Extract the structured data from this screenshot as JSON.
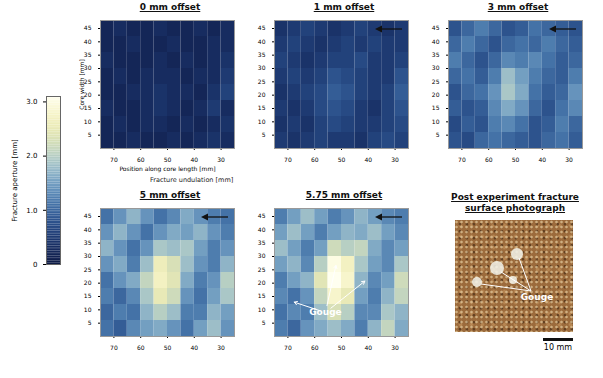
{
  "chart_data": {
    "type": "heatmap",
    "x_label": "Position along core length [mm]",
    "y_label": "Core width [mm]",
    "z_label": "Fracture undulation [mm]",
    "xlim": [
      75,
      25
    ],
    "xticks": [
      70,
      60,
      50,
      40,
      30
    ],
    "ylim": [
      0,
      48
    ],
    "yticks": [
      5,
      10,
      15,
      20,
      25,
      30,
      35,
      40,
      45
    ],
    "x_edges": [
      75,
      70,
      65,
      60,
      55,
      50,
      45,
      40,
      35,
      30,
      25
    ],
    "y_edges": [
      0,
      6,
      12,
      18,
      24,
      30,
      36,
      42,
      48
    ],
    "colorbar": {
      "label": "Fracture aperture [mm]",
      "range": [
        0,
        3.1
      ],
      "ticks": [
        0,
        {
          "value": 1,
          "label": "1.0"
        },
        {
          "value": 2,
          "label": "2.0"
        },
        {
          "value": 3,
          "label": "3.0"
        }
      ]
    },
    "panels": [
      {
        "title": "0 mm offset",
        "cells": [
          [
            0.2,
            0.2,
            0.3,
            0.2,
            0.2,
            0.3,
            0.2,
            0.3,
            0.4,
            0.3
          ],
          [
            0.2,
            0.3,
            0.2,
            0.3,
            0.3,
            0.2,
            0.3,
            0.2,
            0.3,
            0.4
          ],
          [
            0.3,
            0.2,
            0.2,
            0.3,
            0.4,
            0.3,
            0.2,
            0.3,
            0.5,
            0.3
          ],
          [
            0.2,
            0.2,
            0.3,
            0.3,
            0.4,
            0.3,
            0.3,
            0.2,
            0.4,
            0.6
          ],
          [
            0.2,
            0.3,
            0.2,
            0.3,
            0.3,
            0.3,
            0.2,
            0.3,
            0.3,
            0.5
          ],
          [
            0.3,
            0.2,
            0.2,
            0.2,
            0.3,
            0.2,
            0.3,
            0.2,
            0.3,
            0.4
          ],
          [
            0.2,
            0.2,
            0.3,
            0.2,
            0.2,
            0.3,
            0.2,
            0.2,
            0.3,
            0.3
          ],
          [
            0.2,
            0.3,
            0.2,
            0.2,
            0.3,
            0.2,
            0.2,
            0.3,
            0.2,
            0.3
          ]
        ]
      },
      {
        "title": "1 mm offset",
        "cells": [
          [
            0.5,
            0.4,
            0.5,
            0.6,
            0.5,
            0.5,
            0.4,
            0.6,
            0.7,
            0.6
          ],
          [
            0.4,
            0.5,
            0.4,
            0.6,
            0.7,
            0.6,
            0.5,
            0.5,
            0.6,
            0.7
          ],
          [
            0.5,
            0.4,
            0.5,
            0.7,
            0.8,
            0.7,
            0.5,
            0.4,
            0.6,
            0.8
          ],
          [
            0.4,
            0.5,
            0.6,
            0.7,
            0.9,
            0.8,
            0.6,
            0.5,
            0.6,
            0.9
          ],
          [
            0.5,
            0.6,
            0.5,
            0.6,
            0.8,
            0.7,
            0.6,
            0.5,
            0.5,
            0.8
          ],
          [
            0.6,
            0.5,
            0.4,
            0.5,
            0.6,
            0.6,
            0.7,
            0.5,
            0.5,
            0.6
          ],
          [
            0.5,
            0.6,
            0.5,
            0.4,
            0.5,
            0.6,
            0.5,
            0.6,
            0.5,
            0.5
          ],
          [
            0.4,
            0.5,
            0.6,
            0.5,
            0.4,
            0.5,
            0.6,
            0.5,
            0.4,
            0.5
          ]
        ]
      },
      {
        "title": "3 mm offset",
        "cells": [
          [
            0.8,
            0.7,
            1.0,
            1.1,
            1.0,
            0.9,
            0.8,
            1.0,
            1.1,
            0.9
          ],
          [
            0.7,
            0.9,
            0.8,
            1.2,
            1.3,
            1.1,
            0.8,
            0.9,
            1.2,
            1.0
          ],
          [
            0.9,
            0.8,
            0.9,
            1.3,
            1.6,
            1.4,
            1.0,
            0.8,
            1.1,
            1.3
          ],
          [
            0.8,
            1.0,
            1.1,
            1.4,
            1.9,
            1.6,
            1.1,
            0.9,
            1.0,
            1.4
          ],
          [
            1.0,
            1.1,
            0.9,
            1.2,
            1.8,
            1.5,
            1.2,
            1.0,
            0.9,
            1.2
          ],
          [
            1.2,
            1.0,
            0.8,
            1.0,
            1.3,
            1.2,
            1.3,
            1.1,
            0.9,
            1.0
          ],
          [
            1.0,
            1.2,
            1.0,
            0.8,
            1.0,
            1.1,
            1.0,
            1.2,
            1.0,
            0.9
          ],
          [
            0.8,
            1.0,
            1.2,
            1.0,
            0.8,
            0.9,
            1.1,
            1.0,
            0.9,
            0.8
          ]
        ]
      },
      {
        "title": "5 mm offset",
        "cells": [
          [
            1.1,
            0.9,
            1.3,
            1.5,
            1.6,
            1.4,
            1.1,
            1.5,
            1.8,
            1.4
          ],
          [
            1.0,
            1.2,
            1.1,
            1.7,
            2.0,
            1.8,
            1.2,
            1.2,
            1.7,
            1.5
          ],
          [
            1.2,
            1.0,
            1.3,
            1.9,
            2.5,
            2.2,
            1.4,
            1.1,
            1.5,
            1.9
          ],
          [
            1.1,
            1.4,
            1.6,
            2.1,
            2.7,
            2.4,
            1.6,
            1.2,
            1.4,
            2.0
          ],
          [
            1.4,
            1.6,
            1.2,
            1.8,
            2.6,
            2.3,
            1.8,
            1.4,
            1.2,
            1.7
          ],
          [
            1.7,
            1.4,
            1.1,
            1.4,
            1.9,
            1.8,
            1.9,
            1.5,
            1.2,
            1.4
          ],
          [
            1.4,
            1.7,
            1.4,
            1.1,
            1.4,
            1.6,
            1.5,
            1.7,
            1.4,
            1.2
          ],
          [
            1.1,
            1.4,
            1.7,
            1.4,
            1.1,
            1.3,
            1.6,
            1.4,
            1.2,
            1.1
          ]
        ]
      },
      {
        "title": "5.75 mm offset",
        "cells": [
          [
            1.2,
            1.0,
            1.4,
            1.6,
            1.8,
            1.6,
            1.2,
            1.7,
            2.1,
            1.6
          ],
          [
            1.1,
            1.3,
            1.2,
            1.8,
            2.3,
            2.0,
            1.3,
            1.3,
            1.9,
            1.7
          ],
          [
            1.3,
            1.1,
            1.4,
            2.1,
            2.8,
            2.5,
            1.5,
            1.2,
            1.7,
            2.1
          ],
          [
            1.2,
            1.5,
            1.7,
            2.4,
            3.1,
            2.8,
            1.7,
            1.3,
            1.5,
            2.2
          ],
          [
            1.5,
            1.7,
            1.3,
            2.0,
            3.0,
            2.7,
            1.9,
            1.5,
            1.3,
            1.9
          ],
          [
            1.8,
            1.5,
            1.2,
            1.5,
            2.2,
            2.0,
            2.1,
            1.6,
            1.3,
            1.5
          ],
          [
            1.5,
            1.8,
            1.5,
            1.2,
            1.5,
            1.7,
            1.6,
            1.8,
            1.5,
            1.3
          ],
          [
            1.2,
            1.5,
            1.8,
            1.5,
            1.2,
            1.4,
            1.7,
            1.5,
            1.3,
            1.2
          ]
        ],
        "annotations": [
          {
            "text": "Gouge",
            "x": 56,
            "y": 9,
            "targets": [
              [
                52,
                27
              ],
              [
                41,
                21
              ],
              [
                68,
                13
              ]
            ]
          }
        ]
      }
    ],
    "photo": {
      "title": "Post experiment fracture surface photograph",
      "annotation": "Gouge",
      "scale_bar": "10 mm"
    }
  }
}
